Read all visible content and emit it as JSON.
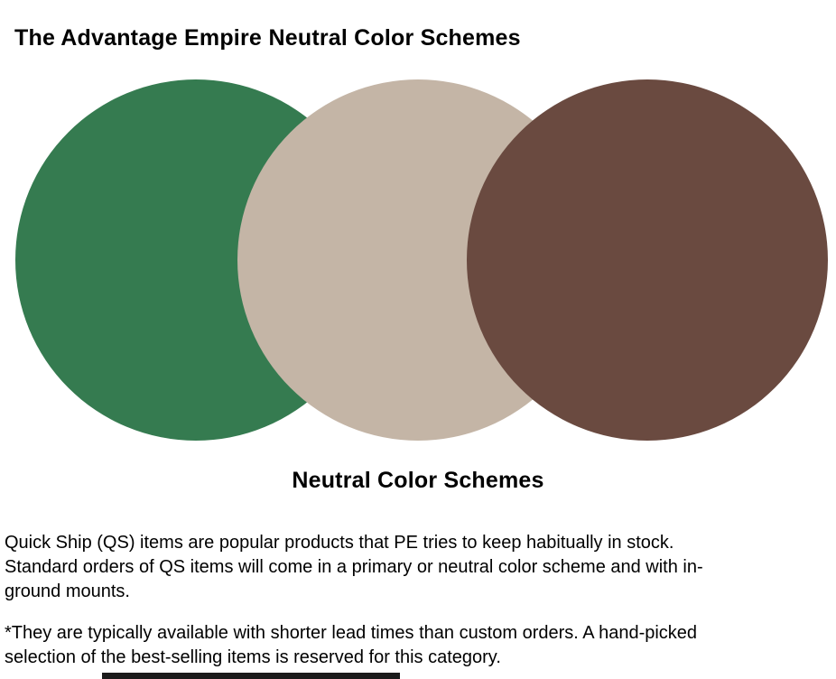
{
  "header": {
    "title_part1": "The Advantage Empire",
    "title_part2": "Neutral Color Schemes"
  },
  "palette": {
    "caption": "Neutral Color Schemes",
    "circles": [
      {
        "name": "green-circle",
        "color": "#357B50"
      },
      {
        "name": "beige-circle",
        "color": "#C4B5A6"
      },
      {
        "name": "brown-circle",
        "color": "#6A4A40"
      }
    ]
  },
  "body": {
    "paragraph1": {
      "line1": "Quick Ship (QS) items are popular products that PE tries to keep habitually in stock.",
      "line2": "Standard orders of QS items will come in a primary or neutral color scheme and with in-",
      "line3": "ground mounts."
    },
    "paragraph2": {
      "line1": "*They are typically available with shorter lead times than custom orders. A hand-picked",
      "line2": "selection of the best-selling items is reserved for this category."
    }
  },
  "footer": {
    "clipped_bar_color": "#1B1B1B"
  }
}
